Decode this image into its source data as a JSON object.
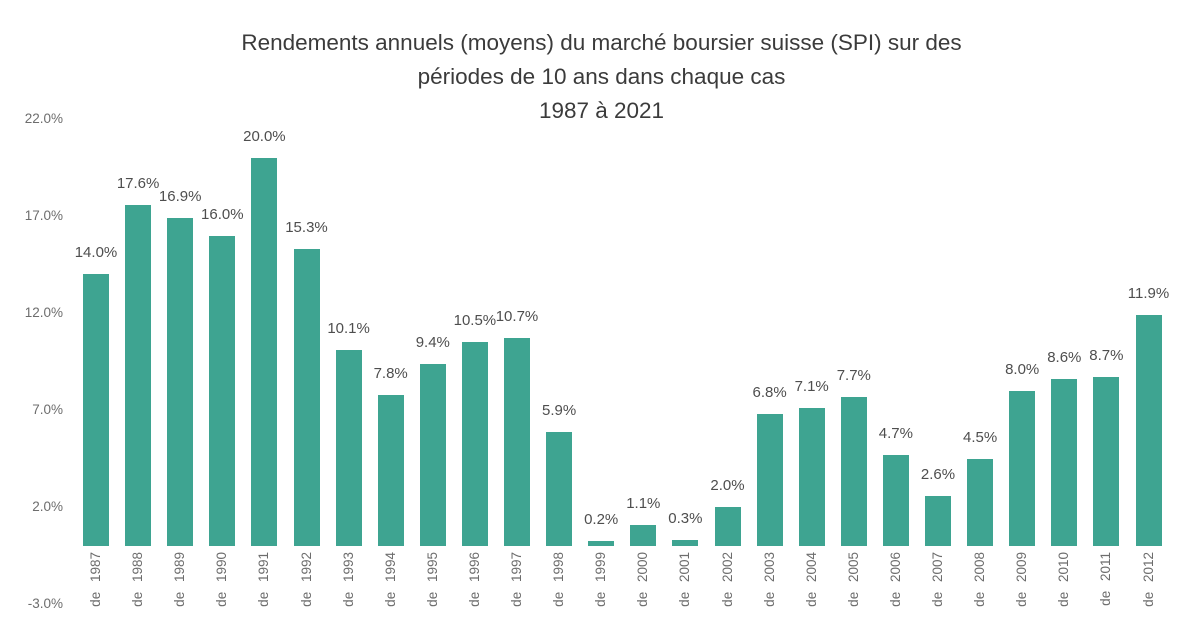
{
  "title": {
    "line1": "Rendements annuels (moyens) du marché boursier suisse (SPI) sur des",
    "line2": "périodes de 10 ans dans chaque cas",
    "line3": "1987 à 2021"
  },
  "chart_data": {
    "type": "bar",
    "title": "Rendements annuels (moyens) du marché boursier suisse (SPI) sur des périodes de 10 ans dans chaque cas — 1987 à 2021",
    "xlabel": "",
    "ylabel": "",
    "categories": [
      "de 1987",
      "de 1988",
      "de 1989",
      "de 1990",
      "de 1991",
      "de 1992",
      "de 1993",
      "de 1994",
      "de 1995",
      "de 1996",
      "de 1997",
      "de 1998",
      "de 1999",
      "de 2000",
      "de 2001",
      "de 2002",
      "de 2003",
      "de 2004",
      "de 2005",
      "de 2006",
      "de 2007",
      "de 2008",
      "de 2009",
      "de 2010",
      "de 2011",
      "de 2012"
    ],
    "values": [
      14.0,
      17.6,
      16.9,
      16.0,
      20.0,
      15.3,
      10.1,
      7.8,
      9.4,
      10.5,
      10.7,
      5.9,
      0.2,
      1.1,
      0.3,
      2.0,
      6.8,
      7.1,
      7.7,
      4.7,
      2.6,
      4.5,
      8.0,
      8.6,
      8.7,
      11.9
    ],
    "value_labels": [
      "14.0%",
      "17.6%",
      "16.9%",
      "16.0%",
      "20.0%",
      "15.3%",
      "10.1%",
      "7.8%",
      "9.4%",
      "10.5%",
      "10.7%",
      "5.9%",
      "0.2%",
      "1.1%",
      "0.3%",
      "2.0%",
      "6.8%",
      "7.1%",
      "7.7%",
      "4.7%",
      "2.6%",
      "4.5%",
      "8.0%",
      "8.6%",
      "8.7%",
      "11.9%"
    ],
    "yticks": [
      22,
      17,
      12,
      7,
      2,
      -3
    ],
    "ytick_labels": [
      "22.0%",
      "17.0%",
      "12.0%",
      "7.0%",
      "2.0%",
      "-3.0%"
    ],
    "ylim": [
      -3,
      22
    ],
    "grid": false,
    "legend": false,
    "bar_color": "#3EA491",
    "text_color": "#3b3b3b",
    "axis_label_color": "#6d6d6d",
    "value_label_color": "#4e4e4e"
  }
}
